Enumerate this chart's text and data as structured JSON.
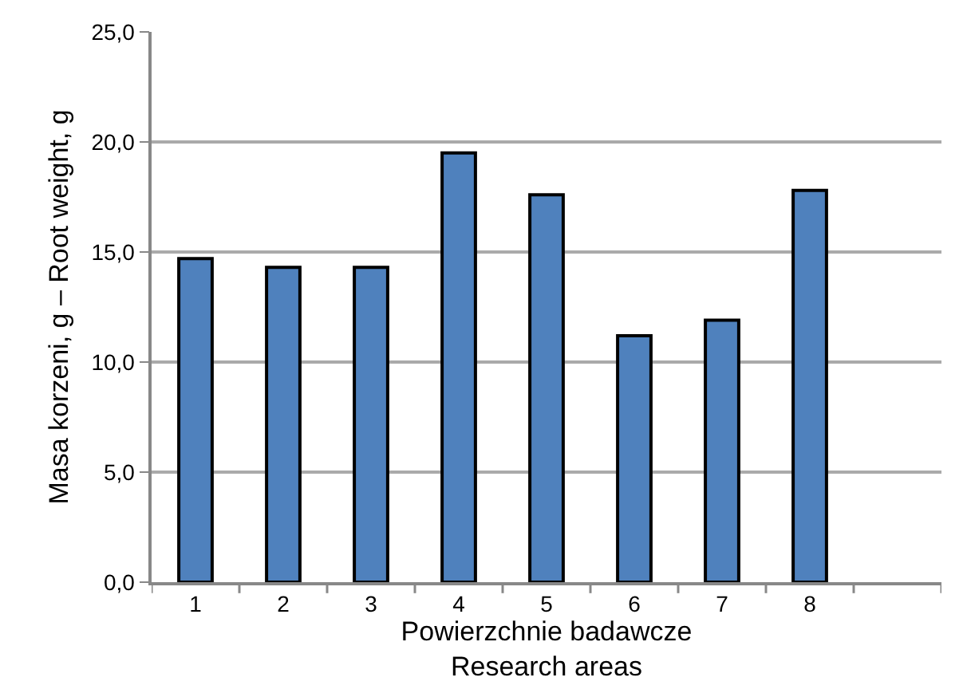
{
  "chart_data": {
    "type": "bar",
    "xlabel": "Powierzchnie badawcze\nResearch areas",
    "ylabel": "Masa korzeni, g – Root weight, g",
    "categories": [
      "1",
      "2",
      "3",
      "4",
      "5",
      "6",
      "7",
      "8",
      null
    ],
    "values": [
      14.7,
      14.3,
      14.3,
      19.5,
      17.6,
      11.2,
      11.9,
      17.8,
      null
    ],
    "color": "#4f81bd",
    "ylim": [
      0,
      25
    ],
    "yticks": [
      {
        "value": 0,
        "label": "0,0"
      },
      {
        "value": 5,
        "label": "5,0"
      },
      {
        "value": 10,
        "label": "10,0"
      },
      {
        "value": 15,
        "label": "15,0"
      },
      {
        "value": 20,
        "label": "20,0"
      },
      {
        "value": 25,
        "label": "25,0"
      }
    ],
    "grid": "y",
    "legend": false
  }
}
